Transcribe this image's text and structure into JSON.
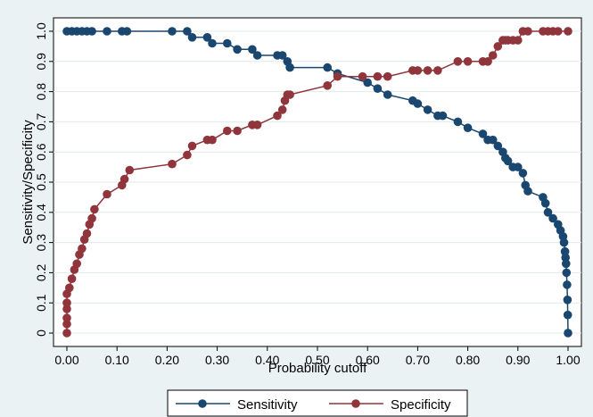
{
  "chart_data": {
    "type": "line",
    "xlabel": "Probability cutoff",
    "ylabel": "Sensitivity/Specificity",
    "xlim": [
      0,
      1
    ],
    "ylim": [
      0,
      1
    ],
    "x_ticks": [
      "0.00",
      "0.10",
      "0.20",
      "0.30",
      "0.40",
      "0.50",
      "0.60",
      "0.70",
      "0.80",
      "0.90",
      "1.00"
    ],
    "y_ticks": [
      "0",
      "0.1",
      "0.2",
      "0.3",
      "0.4",
      "0.5",
      "0.6",
      "0.7",
      "0.8",
      "0.9",
      "1.0"
    ],
    "grid": "horizontal",
    "legend_position": "bottom",
    "colors": {
      "sensitivity": "#1a476f",
      "specificity": "#90353b",
      "plot_bg": "#ffffff",
      "outer_bg": "#eaf2f3"
    },
    "series": [
      {
        "name": "Sensitivity",
        "x": [
          0.0,
          0.01,
          0.02,
          0.03,
          0.04,
          0.05,
          0.08,
          0.11,
          0.12,
          0.21,
          0.24,
          0.25,
          0.28,
          0.29,
          0.32,
          0.34,
          0.37,
          0.38,
          0.42,
          0.43,
          0.44,
          0.445,
          0.52,
          0.54,
          0.6,
          0.62,
          0.64,
          0.69,
          0.7,
          0.72,
          0.74,
          0.75,
          0.78,
          0.8,
          0.83,
          0.84,
          0.85,
          0.86,
          0.87,
          0.875,
          0.88,
          0.89,
          0.9,
          0.91,
          0.915,
          0.92,
          0.95,
          0.955,
          0.96,
          0.97,
          0.98,
          0.985,
          0.99,
          0.992,
          0.994,
          0.995,
          0.996,
          0.997,
          0.998,
          0.999,
          0.9995,
          1.0
        ],
        "y": [
          1.0,
          1.0,
          1.0,
          1.0,
          1.0,
          1.0,
          1.0,
          1.0,
          1.0,
          1.0,
          1.0,
          0.98,
          0.98,
          0.96,
          0.96,
          0.94,
          0.94,
          0.92,
          0.92,
          0.92,
          0.9,
          0.88,
          0.88,
          0.86,
          0.83,
          0.81,
          0.79,
          0.77,
          0.76,
          0.74,
          0.72,
          0.72,
          0.7,
          0.68,
          0.66,
          0.64,
          0.64,
          0.62,
          0.6,
          0.58,
          0.57,
          0.55,
          0.55,
          0.53,
          0.49,
          0.47,
          0.45,
          0.43,
          0.4,
          0.38,
          0.36,
          0.34,
          0.32,
          0.3,
          0.27,
          0.25,
          0.23,
          0.2,
          0.16,
          0.11,
          0.06,
          0.0
        ]
      },
      {
        "name": "Specificity",
        "x": [
          0.0,
          0.0,
          0.0,
          0.0,
          0.0,
          0.0,
          0.005,
          0.01,
          0.015,
          0.02,
          0.025,
          0.03,
          0.035,
          0.04,
          0.045,
          0.05,
          0.055,
          0.08,
          0.11,
          0.115,
          0.125,
          0.21,
          0.24,
          0.25,
          0.28,
          0.29,
          0.32,
          0.34,
          0.37,
          0.38,
          0.42,
          0.43,
          0.435,
          0.44,
          0.445,
          0.52,
          0.54,
          0.59,
          0.62,
          0.64,
          0.69,
          0.7,
          0.72,
          0.74,
          0.78,
          0.8,
          0.83,
          0.84,
          0.85,
          0.86,
          0.87,
          0.875,
          0.88,
          0.89,
          0.9,
          0.91,
          0.92,
          0.95,
          0.96,
          0.97,
          0.98,
          1.0
        ],
        "y": [
          0.0,
          0.03,
          0.05,
          0.08,
          0.1,
          0.13,
          0.15,
          0.18,
          0.21,
          0.23,
          0.26,
          0.28,
          0.31,
          0.33,
          0.36,
          0.38,
          0.41,
          0.46,
          0.49,
          0.51,
          0.54,
          0.56,
          0.59,
          0.62,
          0.64,
          0.64,
          0.67,
          0.67,
          0.69,
          0.69,
          0.72,
          0.74,
          0.77,
          0.79,
          0.79,
          0.82,
          0.85,
          0.85,
          0.85,
          0.85,
          0.87,
          0.87,
          0.87,
          0.87,
          0.9,
          0.9,
          0.9,
          0.9,
          0.92,
          0.95,
          0.97,
          0.97,
          0.97,
          0.97,
          0.97,
          1.0,
          1.0,
          1.0,
          1.0,
          1.0,
          1.0,
          1.0
        ]
      }
    ]
  }
}
